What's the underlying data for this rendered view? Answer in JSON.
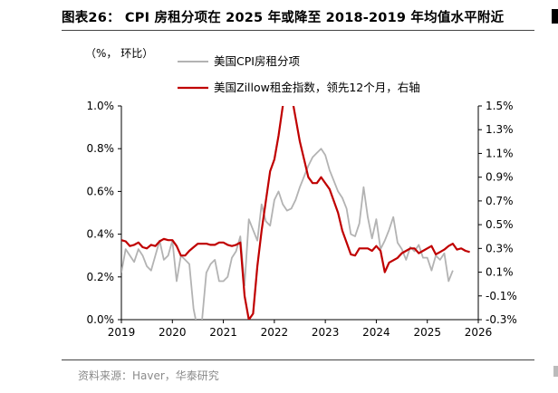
{
  "figure": {
    "title": "图表26：  CPI 房租分项在 2025 年或降至 2018-2019 年均值水平附近",
    "unit_note": "（%，  环比）",
    "source": "资料来源：Haver，华泰研究"
  },
  "chart_data": {
    "type": "line",
    "x_ticks": [
      "2019",
      "2020",
      "2021",
      "2022",
      "2023",
      "2024",
      "2025",
      "2026"
    ],
    "y_left": {
      "ticks": [
        "0.0%",
        "0.2%",
        "0.4%",
        "0.6%",
        "0.8%",
        "1.0%"
      ],
      "range": [
        0.0,
        1.0
      ]
    },
    "y_right": {
      "ticks": [
        "-0.3%",
        "-0.1%",
        "0.1%",
        "0.3%",
        "0.5%",
        "0.7%",
        "0.9%",
        "1.1%",
        "1.3%",
        "1.5%"
      ],
      "range": [
        -0.3,
        1.5
      ]
    },
    "legend_placement": "top-center",
    "series": [
      {
        "name": "美国CPI房租分项",
        "color": "#b3b3b3",
        "axis": "left",
        "x_start": "2019-01",
        "frequency": "monthly",
        "values": [
          0.22,
          0.33,
          0.3,
          0.27,
          0.33,
          0.3,
          0.25,
          0.23,
          0.3,
          0.37,
          0.28,
          0.3,
          0.37,
          0.18,
          0.3,
          0.28,
          0.26,
          0.05,
          -0.05,
          0.0,
          0.22,
          0.26,
          0.28,
          0.18,
          0.18,
          0.2,
          0.29,
          0.32,
          0.39,
          0.16,
          0.47,
          0.42,
          0.37,
          0.54,
          0.46,
          0.44,
          0.56,
          0.6,
          0.54,
          0.51,
          0.52,
          0.56,
          0.62,
          0.67,
          0.72,
          0.76,
          0.78,
          0.8,
          0.77,
          0.7,
          0.65,
          0.6,
          0.57,
          0.52,
          0.4,
          0.39,
          0.45,
          0.62,
          0.48,
          0.38,
          0.47,
          0.33,
          0.37,
          0.42,
          0.48,
          0.36,
          0.33,
          0.28,
          0.34,
          0.32,
          0.35,
          0.29,
          0.29,
          0.23,
          0.3,
          0.28,
          0.31,
          0.18,
          0.23
        ]
      },
      {
        "name": "美国Zillow租金指数，领先12个月，右轴",
        "color": "#c00000",
        "axis": "right",
        "x_start": "2019-01",
        "frequency": "monthly",
        "values": [
          0.37,
          0.36,
          0.32,
          0.33,
          0.35,
          0.31,
          0.3,
          0.33,
          0.32,
          0.36,
          0.38,
          0.37,
          0.37,
          0.32,
          0.24,
          0.24,
          0.28,
          0.31,
          0.34,
          0.34,
          0.34,
          0.33,
          0.33,
          0.35,
          0.35,
          0.33,
          0.32,
          0.33,
          0.35,
          -0.1,
          -0.3,
          -0.25,
          0.15,
          0.45,
          0.7,
          0.95,
          1.05,
          1.25,
          1.5,
          1.65,
          1.6,
          1.4,
          1.2,
          1.05,
          0.9,
          0.85,
          0.85,
          0.9,
          0.85,
          0.8,
          0.7,
          0.6,
          0.45,
          0.35,
          0.25,
          0.24,
          0.3,
          0.3,
          0.3,
          0.28,
          0.32,
          0.28,
          0.1,
          0.18,
          0.2,
          0.22,
          0.26,
          0.28,
          0.3,
          0.3,
          0.26,
          0.28,
          0.3,
          0.32,
          0.25,
          0.27,
          0.29,
          0.32,
          0.34,
          0.29,
          0.3,
          0.28,
          0.27
        ]
      }
    ]
  }
}
